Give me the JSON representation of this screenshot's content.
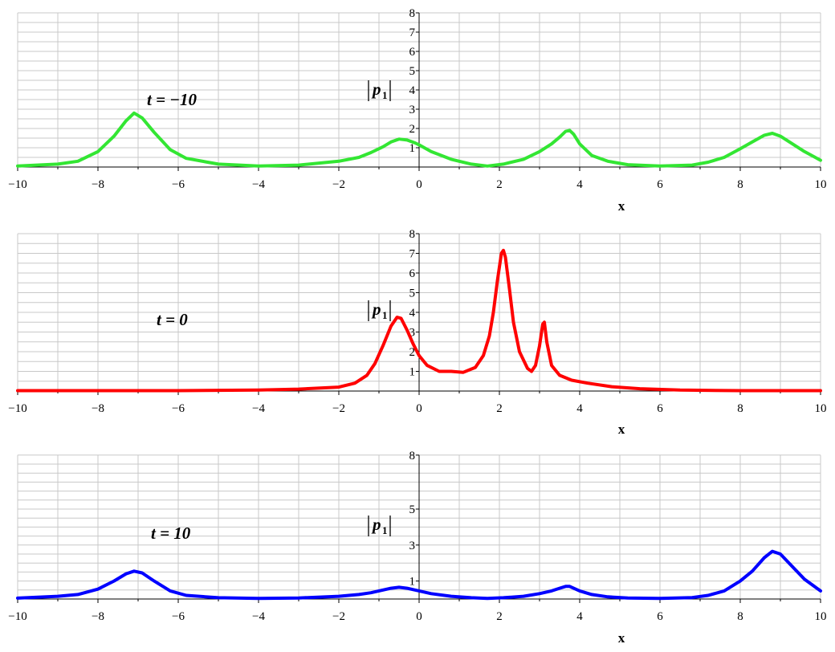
{
  "chart_data": [
    {
      "type": "line",
      "panel_label": "t = −10",
      "xlabel": "x",
      "ylabel_base": "p",
      "ylabel_sub": "1",
      "xlim": [
        -10,
        10
      ],
      "ylim": [
        0,
        8
      ],
      "xticks": [
        "−10",
        "−8",
        "−6",
        "−4",
        "−2",
        "0",
        "2",
        "4",
        "6",
        "8",
        "10"
      ],
      "yticks": [
        "1",
        "2",
        "3",
        "4",
        "5",
        "6",
        "7",
        "8"
      ],
      "color": "#33e633",
      "series": [
        {
          "x": [
            -10,
            -9,
            -8.5,
            -8,
            -7.6,
            -7.3,
            -7.1,
            -6.9,
            -6.6,
            -6.2,
            -5.8,
            -5,
            -4,
            -3,
            -2,
            -1.5,
            -1.2,
            -0.9,
            -0.7,
            -0.5,
            -0.3,
            -0.1,
            0,
            0.3,
            0.8,
            1.3,
            1.7,
            2.1,
            2.6,
            3,
            3.3,
            3.5,
            3.65,
            3.75,
            3.85,
            4,
            4.3,
            4.7,
            5.2,
            6,
            6.8,
            7.2,
            7.6,
            8,
            8.3,
            8.6,
            8.8,
            9,
            9.3,
            9.6,
            10
          ],
          "y": [
            0.05,
            0.15,
            0.3,
            0.8,
            1.6,
            2.4,
            2.8,
            2.55,
            1.8,
            0.9,
            0.45,
            0.15,
            0.05,
            0.1,
            0.3,
            0.5,
            0.75,
            1.05,
            1.3,
            1.45,
            1.4,
            1.25,
            1.15,
            0.8,
            0.4,
            0.15,
            0.05,
            0.15,
            0.4,
            0.8,
            1.2,
            1.55,
            1.85,
            1.9,
            1.7,
            1.2,
            0.6,
            0.3,
            0.12,
            0.05,
            0.1,
            0.25,
            0.5,
            0.95,
            1.3,
            1.65,
            1.75,
            1.6,
            1.2,
            0.8,
            0.35
          ]
        }
      ]
    },
    {
      "type": "line",
      "panel_label": "t = 0",
      "xlabel": "x",
      "ylabel_base": "p",
      "ylabel_sub": "1",
      "xlim": [
        -10,
        10
      ],
      "ylim": [
        0,
        8
      ],
      "xticks": [
        "−10",
        "−8",
        "−6",
        "−4",
        "−2",
        "0",
        "2",
        "4",
        "6",
        "8",
        "10"
      ],
      "yticks": [
        "1",
        "2",
        "3",
        "4",
        "5",
        "6",
        "7",
        "8"
      ],
      "color": "#ff0000",
      "series": [
        {
          "x": [
            -10,
            -6,
            -4,
            -3,
            -2,
            -1.6,
            -1.3,
            -1.1,
            -0.9,
            -0.7,
            -0.55,
            -0.45,
            -0.3,
            -0.15,
            0,
            0.2,
            0.5,
            0.8,
            1.1,
            1.4,
            1.6,
            1.75,
            1.85,
            1.95,
            2.05,
            2.1,
            2.15,
            2.25,
            2.35,
            2.5,
            2.7,
            2.8,
            2.9,
            3,
            3.08,
            3.12,
            3.18,
            3.3,
            3.5,
            3.8,
            4.2,
            4.8,
            5.5,
            6.5,
            8,
            10
          ],
          "y": [
            0.02,
            0.02,
            0.05,
            0.1,
            0.2,
            0.4,
            0.8,
            1.4,
            2.3,
            3.3,
            3.75,
            3.7,
            3.1,
            2.4,
            1.8,
            1.3,
            1.0,
            1.0,
            0.95,
            1.2,
            1.8,
            2.8,
            4.0,
            5.6,
            7.0,
            7.15,
            6.8,
            5.2,
            3.5,
            2.0,
            1.15,
            1.0,
            1.3,
            2.3,
            3.4,
            3.5,
            2.5,
            1.3,
            0.8,
            0.55,
            0.4,
            0.22,
            0.12,
            0.05,
            0.02,
            0.02
          ]
        }
      ]
    },
    {
      "type": "line",
      "panel_label": "t = 10",
      "xlabel": "x",
      "ylabel_base": "p",
      "ylabel_sub": "1",
      "xlim": [
        -10,
        10
      ],
      "ylim": [
        0,
        8
      ],
      "xticks": [
        "−10",
        "−8",
        "−6",
        "−4",
        "−2",
        "0",
        "2",
        "4",
        "6",
        "8",
        "10"
      ],
      "yticks": [
        "1",
        "3",
        "5",
        "8"
      ],
      "color": "#0000ff",
      "series": [
        {
          "x": [
            -10,
            -9,
            -8.5,
            -8,
            -7.6,
            -7.3,
            -7.1,
            -6.9,
            -6.6,
            -6.2,
            -5.8,
            -5,
            -4,
            -3,
            -2,
            -1.5,
            -1.2,
            -0.9,
            -0.7,
            -0.5,
            -0.3,
            -0.1,
            0,
            0.3,
            0.8,
            1.3,
            1.7,
            2.1,
            2.6,
            3,
            3.3,
            3.5,
            3.65,
            3.75,
            3.85,
            4,
            4.3,
            4.7,
            5.2,
            6,
            6.8,
            7.2,
            7.6,
            8,
            8.3,
            8.6,
            8.8,
            9,
            9.3,
            9.6,
            10
          ],
          "y": [
            0.05,
            0.15,
            0.25,
            0.55,
            1.0,
            1.4,
            1.55,
            1.45,
            1.0,
            0.45,
            0.2,
            0.07,
            0.03,
            0.06,
            0.15,
            0.25,
            0.35,
            0.5,
            0.6,
            0.65,
            0.6,
            0.5,
            0.45,
            0.3,
            0.15,
            0.07,
            0.03,
            0.07,
            0.15,
            0.3,
            0.45,
            0.6,
            0.7,
            0.7,
            0.6,
            0.45,
            0.25,
            0.12,
            0.06,
            0.03,
            0.08,
            0.2,
            0.45,
            1.0,
            1.55,
            2.3,
            2.65,
            2.5,
            1.8,
            1.1,
            0.45
          ]
        }
      ]
    }
  ]
}
